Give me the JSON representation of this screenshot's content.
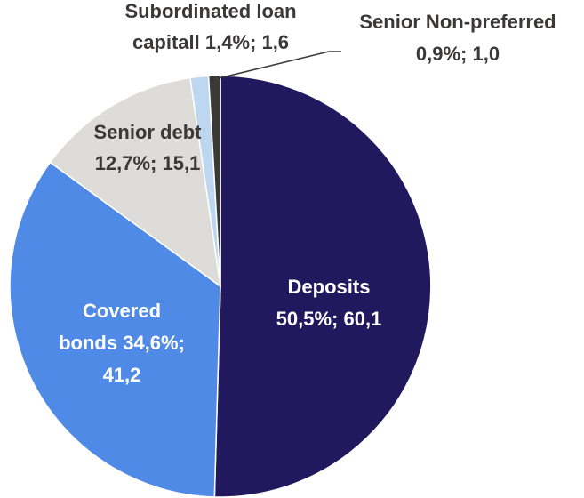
{
  "chart_data": {
    "type": "pie",
    "title": "",
    "unit": "",
    "start_angle_deg": 0,
    "direction": "clockwise",
    "slices": [
      {
        "name": "Deposits",
        "percent": 50.5,
        "value": 60.1,
        "color": "#22185e",
        "label_color": "#ffffff",
        "label_lines": [
          "Deposits",
          "50,5%; 60,1"
        ]
      },
      {
        "name": "Covered bonds",
        "percent": 34.6,
        "value": 41.2,
        "color": "#4f8ae6",
        "label_color": "#ffffff",
        "label_lines": [
          "Covered",
          "bonds 34,6%;",
          "41,2"
        ]
      },
      {
        "name": "Senior debt",
        "percent": 12.7,
        "value": 15.1,
        "color": "#dddcd8",
        "label_color": "#3b3838",
        "label_lines": [
          "Senior debt",
          "12,7%; 15,1"
        ]
      },
      {
        "name": "Subordinated loan capitall",
        "percent": 1.4,
        "value": 1.6,
        "color": "#bcd7ef",
        "label_color": "#3b3838",
        "label_lines": [
          "Subordinated loan",
          "capitall 1,4%; 1,6"
        ]
      },
      {
        "name": "Senior Non-preferred",
        "percent": 0.9,
        "value": 1.0,
        "color": "#3b3838",
        "label_color": "#3b3838",
        "label_lines": [
          "Senior Non-preferred",
          "0,9%; 1,0"
        ]
      }
    ]
  }
}
